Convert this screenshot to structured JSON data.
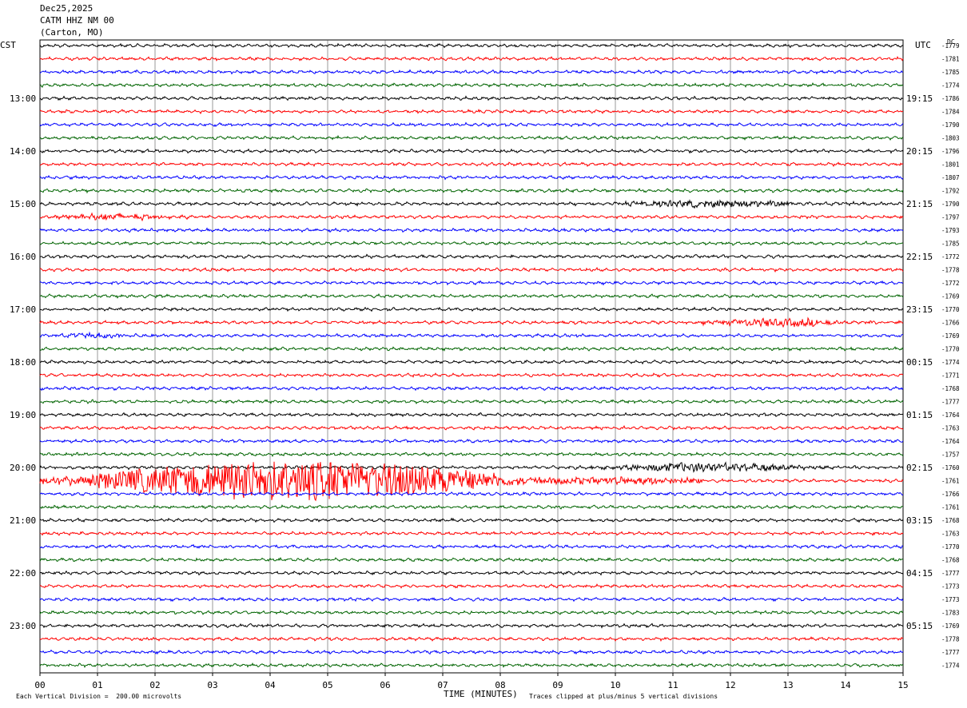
{
  "header": {
    "date": "Dec25,2025",
    "station": "CATM HHZ NM 00",
    "location": "(Carton, MO)"
  },
  "left_tz": "CST",
  "right_tz": "UTC",
  "dc_label": "DC",
  "footer": {
    "vertical_division": "Each Vertical Division =  200.00 microvolts",
    "xlabel": "TIME (MINUTES)",
    "clip_note": "Traces clipped at plus/minus 5 vertical divisions"
  },
  "colors": {
    "black": "#000000",
    "red": "#ff0000",
    "blue": "#0000ff",
    "green": "#006400",
    "grid": "#000000"
  },
  "chart_data": {
    "type": "helicorder",
    "xlabel": "TIME (MINUTES)",
    "xlim": [
      0,
      15
    ],
    "x_ticks": [
      "00",
      "01",
      "02",
      "03",
      "04",
      "05",
      "06",
      "07",
      "08",
      "09",
      "10",
      "11",
      "12",
      "13",
      "14",
      "15"
    ],
    "trace_minutes": 15,
    "trace_count": 48,
    "trace_colors_cycle": [
      "black",
      "red",
      "blue",
      "green"
    ],
    "left_hour_labels": [
      "13:00",
      "14:00",
      "15:00",
      "16:00",
      "17:00",
      "18:00",
      "19:00",
      "20:00",
      "21:00",
      "22:00",
      "23:00"
    ],
    "right_hour_labels": [
      "19:15",
      "20:15",
      "21:15",
      "22:15",
      "23:15",
      "00:15",
      "01:15",
      "02:15",
      "03:15",
      "04:15",
      "05:15"
    ],
    "dc_offsets": [
      -1779,
      -1781,
      -1785,
      -1774,
      -1786,
      -1784,
      -1790,
      -1803,
      -1796,
      -1801,
      -1807,
      -1792,
      -1790,
      -1797,
      -1793,
      -1785,
      -1772,
      -1778,
      -1772,
      -1769,
      -1770,
      -1766,
      -1769,
      -1770,
      -1774,
      -1771,
      -1768,
      -1777,
      -1764,
      -1763,
      -1764,
      -1757,
      -1760,
      -1761,
      -1766,
      -1761,
      -1768,
      -1763,
      -1770,
      -1768,
      -1777,
      -1773,
      -1773,
      -1783,
      -1769,
      -1778,
      -1777,
      -1774
    ],
    "events": [
      {
        "trace": 12,
        "start_min": 9.5,
        "end_min": 15,
        "amp_div": 0.8
      },
      {
        "trace": 13,
        "start_min": 0,
        "end_min": 3.1,
        "amp_div": 0.7
      },
      {
        "trace": 21,
        "start_min": 11.5,
        "end_min": 15,
        "amp_div": 1.0
      },
      {
        "trace": 22,
        "start_min": 0,
        "end_min": 2.5,
        "amp_div": 0.5
      },
      {
        "trace": 32,
        "start_min": 9.5,
        "end_min": 15,
        "amp_div": 1.0
      },
      {
        "trace": 33,
        "start_min": 0,
        "end_min": 11.5,
        "amp_div": 5.0
      }
    ]
  }
}
